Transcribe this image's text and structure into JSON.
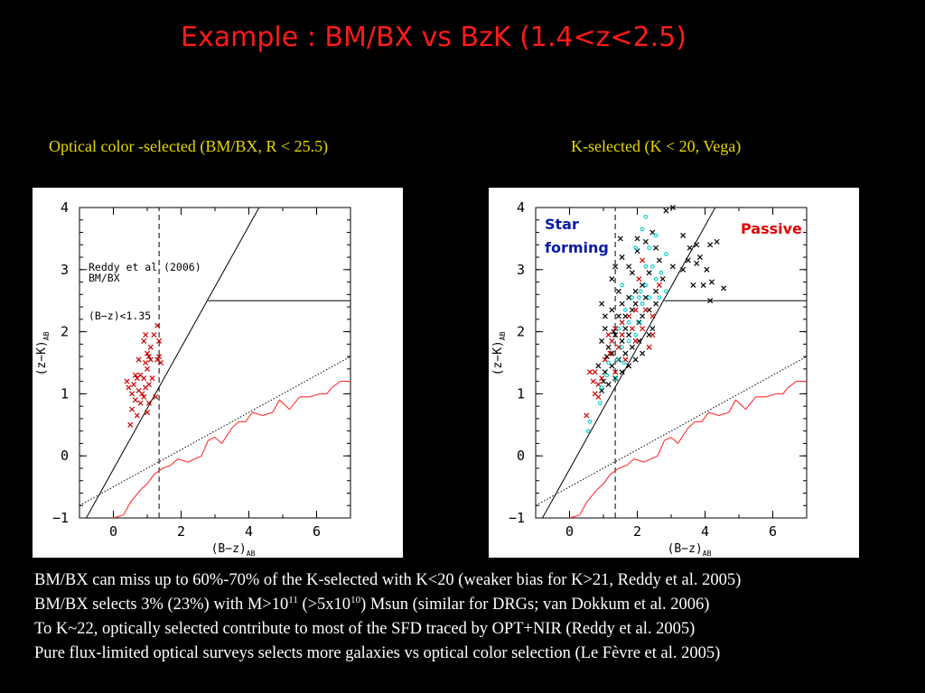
{
  "title": "Example : BM/BX vs BzK (1.4<z<2.5)",
  "captions": {
    "left": "Optical color -selected (BM/BX, R < 25.5)",
    "right": "K-selected (K < 20, Vega)"
  },
  "notes": {
    "line1": "BM/BX can miss up to 60%-70% of the K-selected with K<20 (weaker bias for K>21, Reddy et al. 2005)",
    "line2": {
      "a": "BM/BX selects 3% (23%) with M>10",
      "exp1": "11",
      "b": " (>5x10",
      "exp2": "10",
      "c": ") Msun (similar for DRGs; van Dokkum et al. 2006)"
    },
    "line3": "To K~22, optically selected contribute to most of the SFD traced by OPT+NIR (Reddy et al. 2005)",
    "line4": "Pure flux-limited optical surveys selects more galaxies vs optical color selection (Le Fèvre et al. 2005)"
  },
  "colors": {
    "title": "#ff1a1a",
    "caption": "#e8d800",
    "galaxy": "#cc0000",
    "star_track": "#ff3030",
    "dots": "#00cccc"
  },
  "chart_data": [
    {
      "type": "scatter",
      "xlabel": "(B−z)",
      "xlabel_sub": "AB",
      "ylabel": "(z−K)",
      "ylabel_sub": "AB",
      "xlim": [
        -1,
        7
      ],
      "ylim": [
        -1,
        4
      ],
      "x_ticks": [
        0,
        2,
        4,
        6
      ],
      "y_ticks": [
        -1,
        0,
        1,
        2,
        3,
        4
      ],
      "y_tick_labels": [
        "−1",
        "0",
        "1",
        "2",
        "3",
        "4"
      ],
      "annotations": [
        "Reddy et al (2006)",
        "BM/BX",
        "(B−z)<1.35"
      ],
      "series": [
        {
          "marker": "x",
          "color": "#cc0000",
          "points": [
            [
              1.3,
              2.1
            ],
            [
              1.35,
              1.85
            ],
            [
              1.2,
              1.95
            ],
            [
              1.35,
              1.6
            ],
            [
              1.4,
              1.5
            ],
            [
              1.3,
              1.55
            ],
            [
              0.95,
              1.5
            ],
            [
              1.05,
              1.6
            ],
            [
              1.1,
              1.55
            ],
            [
              1.0,
              1.4
            ],
            [
              1.0,
              1.65
            ],
            [
              1.1,
              1.75
            ],
            [
              0.9,
              1.85
            ],
            [
              0.95,
              1.95
            ],
            [
              0.8,
              1.3
            ],
            [
              0.7,
              1.25
            ],
            [
              0.6,
              1.15
            ],
            [
              0.9,
              1.25
            ],
            [
              0.75,
              1.05
            ],
            [
              0.85,
              1.0
            ],
            [
              0.95,
              1.1
            ],
            [
              1.05,
              1.15
            ],
            [
              0.65,
              0.9
            ],
            [
              0.8,
              0.85
            ],
            [
              0.9,
              0.95
            ],
            [
              0.55,
              1.0
            ],
            [
              0.45,
              1.1
            ],
            [
              0.55,
              0.75
            ],
            [
              0.7,
              0.65
            ],
            [
              0.5,
              0.5
            ],
            [
              1.0,
              0.7
            ],
            [
              1.05,
              0.85
            ],
            [
              0.65,
              1.3
            ],
            [
              1.15,
              1.25
            ],
            [
              0.75,
              1.55
            ],
            [
              0.4,
              1.2
            ],
            [
              1.25,
              0.95
            ]
          ]
        }
      ]
    },
    {
      "type": "scatter",
      "xlabel": "(B−z)",
      "xlabel_sub": "AB",
      "ylabel": "(z−K)",
      "ylabel_sub": "AB",
      "xlim": [
        -1,
        7
      ],
      "ylim": [
        -1,
        4
      ],
      "x_ticks": [
        0,
        2,
        4,
        6
      ],
      "y_ticks": [
        -1,
        0,
        1,
        2,
        3,
        4
      ],
      "y_tick_labels": [
        "−1",
        "0",
        "1",
        "2",
        "3",
        "4"
      ],
      "annotations": [
        "Star",
        "forming",
        "Passive"
      ],
      "series": [
        {
          "marker": "x",
          "color": "#000000",
          "points": [
            [
              2.85,
              3.95
            ],
            [
              3.05,
              4.0
            ],
            [
              2.45,
              3.6
            ],
            [
              2.0,
              3.5
            ],
            [
              2.25,
              3.45
            ],
            [
              2.55,
              3.35
            ],
            [
              3.35,
              3.55
            ],
            [
              3.55,
              3.35
            ],
            [
              3.75,
              3.4
            ],
            [
              3.85,
              3.2
            ],
            [
              4.15,
              3.4
            ],
            [
              4.35,
              3.45
            ],
            [
              4.05,
              3.0
            ],
            [
              3.75,
              3.1
            ],
            [
              3.5,
              3.15
            ],
            [
              3.95,
              2.75
            ],
            [
              4.2,
              2.8
            ],
            [
              4.55,
              2.7
            ],
            [
              3.65,
              2.75
            ],
            [
              4.15,
              2.5
            ],
            [
              3.35,
              3.0
            ],
            [
              3.05,
              3.05
            ],
            [
              2.75,
              2.85
            ],
            [
              2.55,
              2.65
            ],
            [
              2.35,
              2.95
            ],
            [
              1.75,
              3.05
            ],
            [
              1.55,
              3.2
            ],
            [
              1.35,
              3.05
            ],
            [
              2.15,
              2.75
            ],
            [
              1.95,
              2.65
            ],
            [
              2.25,
              2.55
            ],
            [
              2.55,
              2.45
            ],
            [
              2.35,
              2.35
            ],
            [
              2.15,
              2.25
            ],
            [
              1.95,
              2.45
            ],
            [
              1.75,
              2.55
            ],
            [
              1.85,
              2.35
            ],
            [
              2.05,
              2.15
            ],
            [
              1.65,
              2.05
            ],
            [
              1.45,
              2.25
            ],
            [
              1.25,
              2.35
            ],
            [
              1.05,
              2.25
            ],
            [
              1.35,
              1.95
            ],
            [
              1.15,
              1.75
            ],
            [
              0.95,
              1.85
            ],
            [
              1.55,
              1.85
            ],
            [
              1.75,
              1.95
            ],
            [
              1.85,
              1.75
            ],
            [
              1.65,
              1.65
            ],
            [
              1.45,
              1.55
            ],
            [
              1.25,
              1.45
            ],
            [
              1.05,
              1.35
            ],
            [
              0.85,
              1.45
            ],
            [
              1.35,
              1.25
            ],
            [
              1.15,
              1.15
            ],
            [
              0.95,
              1.05
            ],
            [
              1.55,
              1.35
            ],
            [
              1.75,
              1.45
            ],
            [
              1.95,
              1.55
            ],
            [
              2.05,
              1.85
            ],
            [
              2.35,
              1.95
            ],
            [
              2.15,
              1.65
            ],
            [
              1.05,
              2.05
            ],
            [
              1.25,
              1.65
            ],
            [
              0.95,
              2.45
            ],
            [
              1.45,
              2.65
            ],
            [
              1.25,
              2.85
            ],
            [
              1.55,
              2.45
            ],
            [
              1.65,
              2.25
            ],
            [
              2.45,
              2.05
            ],
            [
              1.85,
              2.95
            ],
            [
              2.65,
              3.15
            ],
            [
              1.5,
              3.5
            ],
            [
              2.0,
              3.3
            ],
            [
              1.1,
              1.6
            ],
            [
              1.3,
              2.0
            ],
            [
              1.0,
              1.2
            ]
          ]
        },
        {
          "marker": "x",
          "color": "#cc0000",
          "points": [
            [
              0.5,
              0.65
            ],
            [
              0.75,
              1.0
            ],
            [
              0.85,
              0.95
            ],
            [
              0.95,
              1.25
            ],
            [
              0.6,
              1.35
            ],
            [
              0.7,
              1.2
            ],
            [
              1.05,
              1.55
            ],
            [
              1.2,
              1.65
            ],
            [
              1.15,
              1.95
            ],
            [
              1.35,
              2.05
            ],
            [
              1.45,
              1.75
            ],
            [
              1.65,
              1.55
            ],
            [
              1.85,
              2.05
            ],
            [
              2.15,
              2.05
            ],
            [
              2.35,
              1.75
            ],
            [
              1.75,
              2.25
            ],
            [
              1.95,
              2.35
            ],
            [
              2.25,
              2.35
            ],
            [
              1.55,
              2.15
            ],
            [
              2.15,
              3.15
            ],
            [
              2.05,
              2.85
            ],
            [
              2.65,
              2.75
            ],
            [
              1.35,
              1.35
            ],
            [
              1.55,
              1.95
            ],
            [
              2.45,
              2.25
            ],
            [
              0.85,
              1.15
            ],
            [
              1.25,
              1.85
            ],
            [
              2.45,
              1.95
            ],
            [
              1.95,
              1.85
            ],
            [
              0.75,
              1.35
            ]
          ]
        },
        {
          "marker": "dot",
          "color": "#00cccc",
          "points": [
            [
              0.55,
              0.4
            ],
            [
              0.6,
              0.55
            ],
            [
              0.9,
              0.85
            ],
            [
              0.95,
              1.1
            ],
            [
              1.1,
              1.3
            ],
            [
              1.15,
              1.5
            ],
            [
              1.4,
              1.55
            ],
            [
              1.6,
              1.5
            ],
            [
              1.55,
              1.75
            ],
            [
              1.75,
              1.85
            ],
            [
              1.95,
              1.95
            ],
            [
              2.05,
              2.15
            ],
            [
              2.15,
              2.45
            ],
            [
              2.25,
              2.75
            ],
            [
              2.35,
              2.55
            ],
            [
              2.55,
              2.85
            ],
            [
              2.7,
              2.95
            ],
            [
              2.85,
              3.25
            ],
            [
              2.55,
              3.55
            ],
            [
              2.45,
              3.05
            ],
            [
              2.1,
              2.65
            ],
            [
              1.85,
              2.55
            ],
            [
              1.65,
              2.35
            ],
            [
              1.45,
              2.05
            ],
            [
              1.75,
              2.15
            ],
            [
              2.05,
              2.55
            ],
            [
              2.25,
              3.05
            ],
            [
              1.95,
              3.35
            ],
            [
              2.25,
              3.85
            ],
            [
              1.55,
              2.75
            ],
            [
              2.65,
              2.55
            ],
            [
              2.85,
              2.65
            ],
            [
              2.35,
              3.35
            ],
            [
              2.15,
              3.65
            ],
            [
              1.35,
              1.25
            ]
          ]
        }
      ]
    }
  ]
}
